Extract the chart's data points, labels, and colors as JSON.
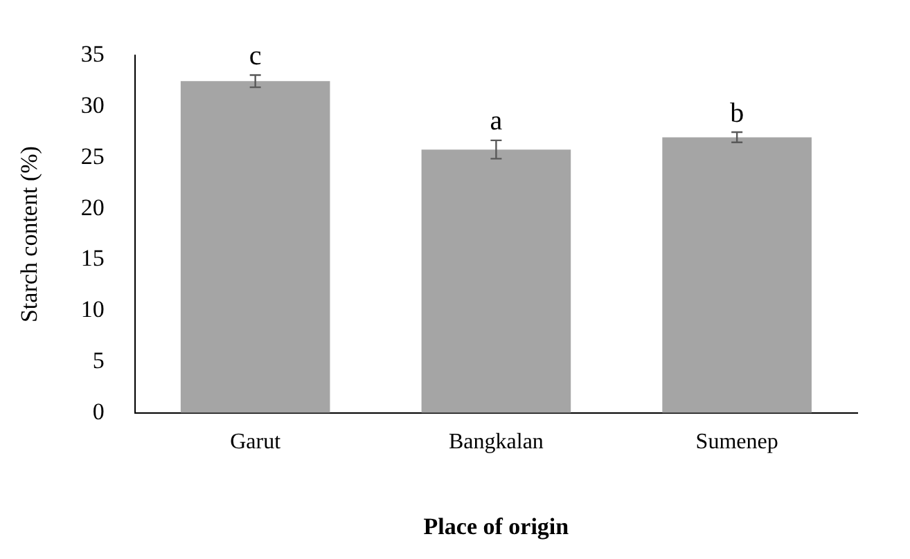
{
  "chart_data": {
    "type": "bar",
    "xlabel": "Place of origin",
    "ylabel": "Starch content (%)",
    "categories": [
      "Garut",
      "Bangkalan",
      "Sumenep"
    ],
    "values": [
      32.5,
      25.8,
      27.0
    ],
    "errors": [
      0.6,
      0.9,
      0.5
    ],
    "color": "#a5a5a5",
    "ylim": [
      0,
      35
    ],
    "yticks": [
      0,
      5,
      10,
      15,
      20,
      25,
      30,
      35
    ],
    "grid": false,
    "annotations": [
      {
        "text": "c",
        "x": "Garut",
        "y": 33.1
      },
      {
        "text": "a",
        "x": "Bangkalan",
        "y": 26.7
      },
      {
        "text": "b",
        "x": "Sumenep",
        "y": 27.5
      }
    ]
  }
}
